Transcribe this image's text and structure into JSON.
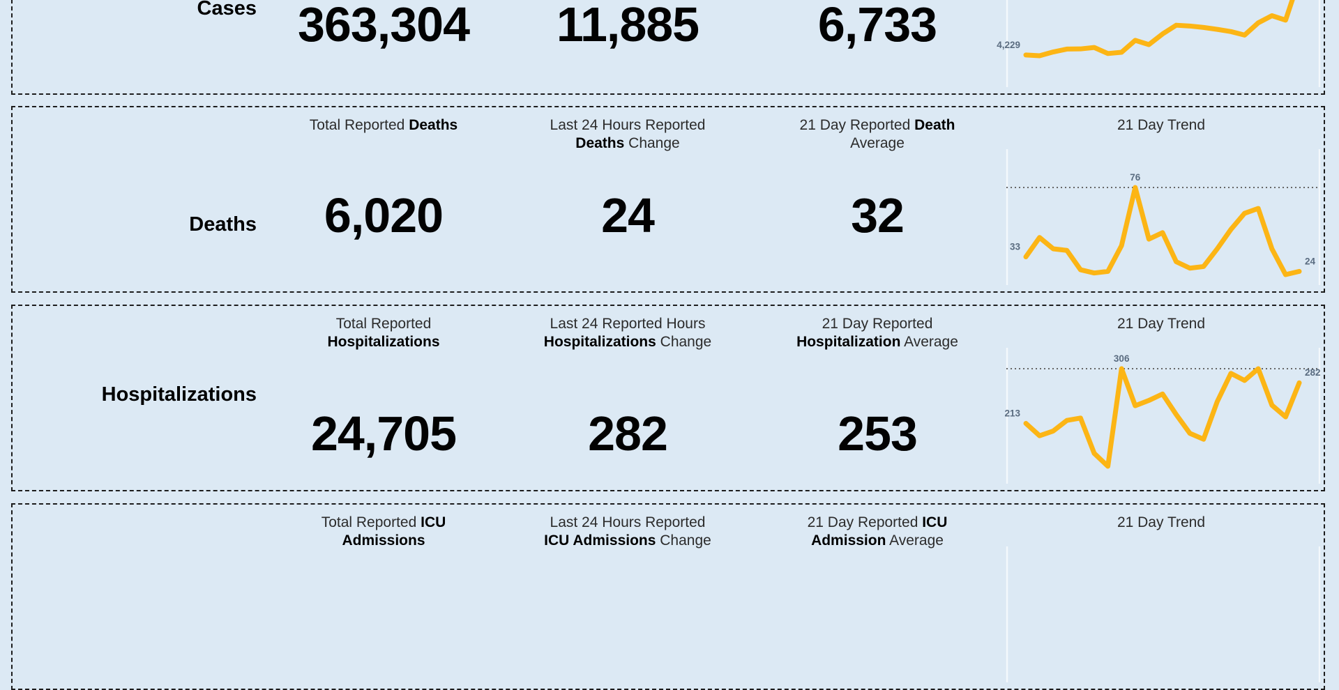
{
  "colors": {
    "background": "#dce9f4",
    "line": "#fcb515",
    "spark_label": "#5a6c80",
    "border": "#1c1c1c",
    "max_line": "#666666",
    "axis_tick": "#f3f8fc"
  },
  "panels": [
    {
      "id": "cases",
      "row_label": "Cases",
      "total": "363,304",
      "change": "11,885",
      "average": "6,733",
      "trend": {
        "type": "line",
        "start_label": "4,229",
        "values": [
          4229,
          4180,
          4420,
          4600,
          4610,
          4700,
          4320,
          4400,
          5150,
          4880,
          5550,
          6100,
          6050,
          5960,
          5840,
          5700,
          5480,
          6250,
          6700,
          6420,
          9000
        ],
        "show_max_line": false
      }
    },
    {
      "id": "deaths",
      "row_label": "Deaths",
      "headers": [
        {
          "lines": [
            [
              {
                "t": "Total Reported ",
                "b": 0
              },
              {
                "t": "Deaths",
                "b": 1
              }
            ]
          ]
        },
        {
          "lines": [
            [
              {
                "t": "Last 24 Hours Reported",
                "b": 0
              }
            ],
            [
              {
                "t": "Deaths",
                "b": 1
              },
              {
                "t": " Change",
                "b": 0
              }
            ]
          ]
        },
        {
          "lines": [
            [
              {
                "t": "21 Day Reported ",
                "b": 0
              },
              {
                "t": "Death",
                "b": 1
              }
            ],
            [
              {
                "t": "Average",
                "b": 0
              }
            ]
          ]
        },
        {
          "lines": [
            [
              {
                "t": "21 Day Trend",
                "b": 0
              }
            ]
          ]
        }
      ],
      "total": "6,020",
      "change": "24",
      "average": "32",
      "trend": {
        "type": "line",
        "start_label": "33",
        "peak_label": "76",
        "end_label": "24",
        "values": [
          33,
          45,
          38,
          37,
          25,
          23,
          24,
          40,
          76,
          44,
          48,
          30,
          26,
          27,
          38,
          50,
          60,
          63,
          38,
          22,
          24
        ],
        "show_max_line": true
      }
    },
    {
      "id": "hospitalizations",
      "row_label": "Hospitalizations",
      "headers": [
        {
          "lines": [
            [
              {
                "t": "Total Reported",
                "b": 0
              }
            ],
            [
              {
                "t": "Hospitalizations",
                "b": 1
              }
            ]
          ]
        },
        {
          "lines": [
            [
              {
                "t": "Last 24 Reported Hours",
                "b": 0
              }
            ],
            [
              {
                "t": "Hospitalizations",
                "b": 1
              },
              {
                "t": " Change",
                "b": 0
              }
            ]
          ]
        },
        {
          "lines": [
            [
              {
                "t": "21 Day Reported",
                "b": 0
              }
            ],
            [
              {
                "t": "Hospitalization",
                "b": 1
              },
              {
                "t": " Average",
                "b": 0
              }
            ]
          ]
        },
        {
          "lines": [
            [
              {
                "t": "21 Day Trend",
                "b": 0
              }
            ]
          ]
        }
      ],
      "total": "24,705",
      "change": "282",
      "average": "253",
      "trend": {
        "type": "line",
        "start_label": "213",
        "peak_label": "306",
        "end_label": "282",
        "values": [
          213,
          192,
          200,
          218,
          222,
          162,
          140,
          306,
          243,
          252,
          263,
          228,
          196,
          186,
          250,
          298,
          286,
          306,
          244,
          224,
          282
        ],
        "show_max_line": true
      }
    },
    {
      "id": "icu",
      "headers": [
        {
          "lines": [
            [
              {
                "t": "Total Reported ",
                "b": 0
              },
              {
                "t": "ICU",
                "b": 1
              }
            ],
            [
              {
                "t": "Admissions",
                "b": 1
              }
            ]
          ]
        },
        {
          "lines": [
            [
              {
                "t": "Last 24 Hours Reported",
                "b": 0
              }
            ],
            [
              {
                "t": "ICU Admissions",
                "b": 1
              },
              {
                "t": " Change",
                "b": 0
              }
            ]
          ]
        },
        {
          "lines": [
            [
              {
                "t": "21 Day Reported ",
                "b": 0
              },
              {
                "t": "ICU",
                "b": 1
              }
            ],
            [
              {
                "t": "Admission",
                "b": 1
              },
              {
                "t": " Average",
                "b": 0
              }
            ]
          ]
        },
        {
          "lines": [
            [
              {
                "t": "21 Day Trend",
                "b": 0
              }
            ]
          ]
        }
      ],
      "trend": {}
    }
  ]
}
